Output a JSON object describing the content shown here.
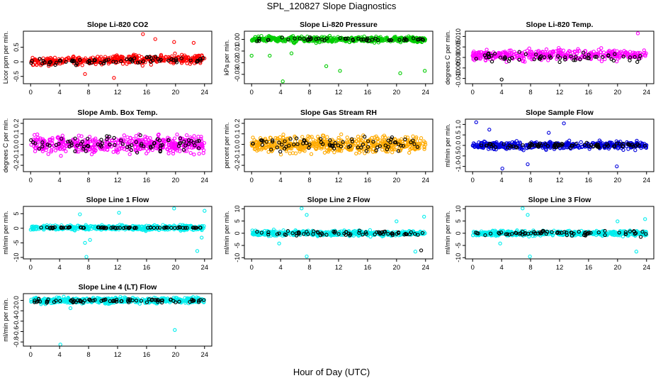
{
  "page": {
    "title": "SPL_120827  Slope Diagnostics",
    "x_axis_title": "Hour of Day (UTC)"
  },
  "chart_data": [
    {
      "type": "scatter",
      "title": "Slope Li-820 CO2",
      "ylabel": "Licor ppm per min.",
      "ylim": [
        -0.75,
        1.05
      ],
      "yticks": [
        -0.5,
        0,
        0.5
      ],
      "ytick_labels": [
        "-0.5",
        "0",
        "0.5"
      ],
      "xlim": [
        -1,
        25
      ],
      "xticks": [
        0,
        4,
        8,
        12,
        16,
        20,
        24
      ],
      "series": [
        {
          "color": "#ff0000",
          "n": 420,
          "mean": 0.05,
          "spread": 0.14,
          "drift": [
            0,
            0.15,
            0.2
          ],
          "outliers": [
            [
              15.5,
              0.95
            ],
            [
              17.2,
              0.78
            ],
            [
              19.8,
              0.68
            ],
            [
              11.5,
              -0.55
            ],
            [
              22.5,
              0.65
            ],
            [
              7.5,
              -0.42
            ]
          ]
        },
        {
          "color": "#000000",
          "n": 70,
          "mean": 0.02,
          "spread": 0.1,
          "drift": [
            0,
            0.12,
            0.15
          ],
          "outliers": []
        }
      ]
    },
    {
      "type": "scatter",
      "title": "Slope Li-820 Pressure",
      "ylabel": "kPa per min.",
      "ylim": [
        -0.038,
        0.007
      ],
      "yticks": [
        -0.03,
        -0.02,
        -0.01,
        0
      ],
      "ytick_labels": [
        "-0.03",
        "-0.02",
        "-0.01",
        "0.00"
      ],
      "xlim": [
        -1,
        25
      ],
      "xticks": [
        0,
        4,
        8,
        12,
        16,
        20,
        24
      ],
      "series": [
        {
          "color": "#00cc00",
          "n": 480,
          "mean": 0.0,
          "spread": 0.0022,
          "drift": [
            0,
            0,
            0
          ],
          "outliers": [
            [
              4.3,
              -0.036
            ],
            [
              2.5,
              -0.014
            ],
            [
              10.3,
              -0.023
            ],
            [
              12.2,
              -0.027
            ],
            [
              20.5,
              -0.029
            ],
            [
              23.9,
              -0.027
            ],
            [
              0,
              -0.014
            ],
            [
              5.5,
              -0.012
            ]
          ]
        },
        {
          "color": "#000000",
          "n": 50,
          "mean": 0.0,
          "spread": 0.0015,
          "drift": [
            0,
            0,
            0
          ],
          "outliers": []
        }
      ]
    },
    {
      "type": "scatter",
      "title": "Slope Li-820 Temp.",
      "ylabel": "degrees C per min.",
      "ylim": [
        -0.0125,
        0.0125
      ],
      "yticks": [
        -0.01,
        -0.005,
        0,
        0.005,
        0.01
      ],
      "ytick_labels": [
        "-0.010",
        "-0.005",
        "0.000",
        "0.005",
        "0.010"
      ],
      "xlim": [
        -1,
        25
      ],
      "xticks": [
        0,
        4,
        8,
        12,
        16,
        20,
        24
      ],
      "series": [
        {
          "color": "#ff00ff",
          "n": 400,
          "mean": 0.001,
          "spread": 0.0024,
          "drift": [
            0,
            0.001,
            0.001
          ],
          "outliers": [
            [
              22.8,
              0.0115
            ]
          ]
        },
        {
          "color": "#000000",
          "n": 60,
          "mean": 0.0,
          "spread": 0.002,
          "drift": [
            0,
            0,
            0
          ],
          "outliers": [
            [
              4,
              -0.0105
            ]
          ]
        }
      ]
    },
    {
      "type": "scatter",
      "title": "Slope Amb. Box Temp.",
      "ylabel": "degrees C per min.",
      "ylim": [
        -0.26,
        0.24
      ],
      "yticks": [
        -0.2,
        -0.1,
        0,
        0.1,
        0.2
      ],
      "ytick_labels": [
        "-0.2",
        "-0.1",
        "0.0",
        "0.1",
        "0.2"
      ],
      "xlim": [
        -1,
        25
      ],
      "xticks": [
        0,
        4,
        8,
        12,
        16,
        20,
        24
      ],
      "series": [
        {
          "color": "#ff00ff",
          "n": 520,
          "mean": 0.0,
          "spread": 0.075,
          "drift": [
            0,
            0,
            0
          ],
          "outliers": []
        },
        {
          "color": "#000000",
          "n": 80,
          "mean": 0.0,
          "spread": 0.07,
          "drift": [
            0,
            0,
            0
          ],
          "outliers": []
        }
      ]
    },
    {
      "type": "scatter",
      "title": "Slope Gas Stream RH",
      "ylabel": "percent per min.",
      "ylim": [
        -0.26,
        0.24
      ],
      "yticks": [
        -0.2,
        -0.1,
        0,
        0.1,
        0.2
      ],
      "ytick_labels": [
        "-0.2",
        "-0.1",
        "0.0",
        "0.1",
        "0.2"
      ],
      "xlim": [
        -1,
        25
      ],
      "xticks": [
        0,
        4,
        8,
        12,
        16,
        20,
        24
      ],
      "series": [
        {
          "color": "#ffaa00",
          "n": 560,
          "mean": 0.0,
          "spread": 0.07,
          "drift": [
            0,
            0,
            0
          ],
          "outliers": []
        },
        {
          "color": "#000000",
          "n": 75,
          "mean": 0.0,
          "spread": 0.06,
          "drift": [
            0,
            0,
            0
          ],
          "outliers": []
        }
      ]
    },
    {
      "type": "scatter",
      "title": "Slope Sample Flow",
      "ylabel": "ml/min per min.",
      "ylim": [
        -1.25,
        1.25
      ],
      "yticks": [
        -1,
        -0.5,
        0,
        0.5,
        1
      ],
      "ytick_labels": [
        "-1.0",
        "-0.5",
        "0.0",
        "0.5",
        "1.0"
      ],
      "xlim": [
        -1,
        25
      ],
      "xticks": [
        0,
        4,
        8,
        12,
        16,
        20,
        24
      ],
      "series": [
        {
          "color": "#0000dd",
          "n": 440,
          "mean": 0.0,
          "spread": 0.17,
          "drift": [
            0,
            0,
            0
          ],
          "outliers": [
            [
              0.5,
              1.1
            ],
            [
              2.3,
              0.75
            ],
            [
              4.1,
              -1.1
            ],
            [
              7.6,
              -0.9
            ],
            [
              12.6,
              1.05
            ],
            [
              19.9,
              -1.0
            ],
            [
              10.5,
              0.6
            ]
          ]
        },
        {
          "color": "#000000",
          "n": 80,
          "mean": 0.0,
          "spread": 0.1,
          "drift": [
            0,
            0,
            0
          ],
          "outliers": []
        }
      ]
    },
    {
      "type": "scatter",
      "title": "Slope Line 1 Flow",
      "ylabel": "ml/min per min.",
      "ylim": [
        -10.5,
        7.5
      ],
      "yticks": [
        -10,
        -5,
        0,
        5
      ],
      "ytick_labels": [
        "-10",
        "-5",
        "0",
        "5"
      ],
      "xlim": [
        -1,
        25
      ],
      "xticks": [
        0,
        4,
        8,
        12,
        16,
        20,
        24
      ],
      "series": [
        {
          "color": "#00eeee",
          "n": 460,
          "mean": 0.2,
          "spread": 0.8,
          "drift": [
            0,
            0,
            0
          ],
          "outliers": [
            [
              7.7,
              -9.8
            ],
            [
              6.8,
              4.8
            ],
            [
              12.2,
              5.3
            ],
            [
              19.8,
              6.8
            ],
            [
              23.6,
              -3.2
            ],
            [
              23,
              -7.8
            ],
            [
              24,
              6
            ],
            [
              7.5,
              -5
            ],
            [
              8.2,
              -4
            ]
          ]
        },
        {
          "color": "#000000",
          "n": 70,
          "mean": 0.2,
          "spread": 0.2,
          "drift": [
            0,
            0,
            0
          ],
          "outliers": []
        }
      ]
    },
    {
      "type": "scatter",
      "title": "Slope Line 2 Flow",
      "ylabel": "ml/min per min.",
      "ylim": [
        -10.5,
        11
      ],
      "yticks": [
        -10,
        -5,
        0,
        5,
        10
      ],
      "ytick_labels": [
        "-10",
        "-5",
        "0",
        "5",
        "10"
      ],
      "xlim": [
        -1,
        25
      ],
      "xticks": [
        0,
        4,
        8,
        12,
        16,
        20,
        24
      ],
      "series": [
        {
          "color": "#00eeee",
          "n": 460,
          "mean": 0.0,
          "spread": 1.0,
          "drift": [
            0,
            0,
            0
          ],
          "outliers": [
            [
              6.9,
              10.2
            ],
            [
              7.6,
              7.5
            ],
            [
              7.6,
              -9.5
            ],
            [
              20,
              4.9
            ],
            [
              23.8,
              6.8
            ],
            [
              22.6,
              -7.5
            ],
            [
              3.8,
              -4.2
            ]
          ]
        },
        {
          "color": "#000000",
          "n": 70,
          "mean": 0.0,
          "spread": 0.9,
          "drift": [
            0,
            0,
            0
          ],
          "outliers": [
            [
              23.4,
              -7
            ]
          ]
        }
      ]
    },
    {
      "type": "scatter",
      "title": "Slope Line 3 Flow",
      "ylabel": "ml/min per min.",
      "ylim": [
        -10.5,
        11
      ],
      "yticks": [
        -10,
        -5,
        0,
        5,
        10
      ],
      "ytick_labels": [
        "-10",
        "-5",
        "0",
        "5",
        "10"
      ],
      "xlim": [
        -1,
        25
      ],
      "xticks": [
        0,
        4,
        8,
        12,
        16,
        20,
        24
      ],
      "series": [
        {
          "color": "#00eeee",
          "n": 460,
          "mean": 0.0,
          "spread": 1.0,
          "drift": [
            0,
            0,
            0
          ],
          "outliers": [
            [
              6.9,
              10.2
            ],
            [
              7.6,
              7.5
            ],
            [
              7.9,
              -9.5
            ],
            [
              20,
              4.9
            ],
            [
              23.8,
              5.8
            ],
            [
              22.6,
              -7.5
            ],
            [
              3.8,
              -4.2
            ]
          ]
        },
        {
          "color": "#000000",
          "n": 70,
          "mean": 0.0,
          "spread": 0.9,
          "drift": [
            0,
            0,
            0
          ],
          "outliers": [
            [
              23.2,
              -1.5
            ]
          ]
        }
      ]
    },
    {
      "type": "scatter",
      "title": "Slope Line 4 (LT) Flow",
      "ylabel": "ml/min per min.",
      "ylim": [
        -0.88,
        0.13
      ],
      "yticks": [
        -0.8,
        -0.6,
        -0.4,
        -0.2,
        0
      ],
      "ytick_labels": [
        "-0.8",
        "-0.6",
        "-0.4",
        "-0.2",
        "0.0"
      ],
      "xlim": [
        -1,
        25
      ],
      "xticks": [
        0,
        4,
        8,
        12,
        16,
        20,
        24
      ],
      "series": [
        {
          "color": "#00eeee",
          "n": 520,
          "mean": 0.0,
          "spread": 0.05,
          "drift": [
            0,
            0,
            0
          ],
          "outliers": [
            [
              4.1,
              -0.85
            ],
            [
              19.9,
              -0.57
            ],
            [
              5.5,
              -0.15
            ]
          ]
        },
        {
          "color": "#000000",
          "n": 80,
          "mean": -0.01,
          "spread": 0.04,
          "drift": [
            0,
            0,
            0
          ],
          "outliers": []
        }
      ]
    }
  ]
}
